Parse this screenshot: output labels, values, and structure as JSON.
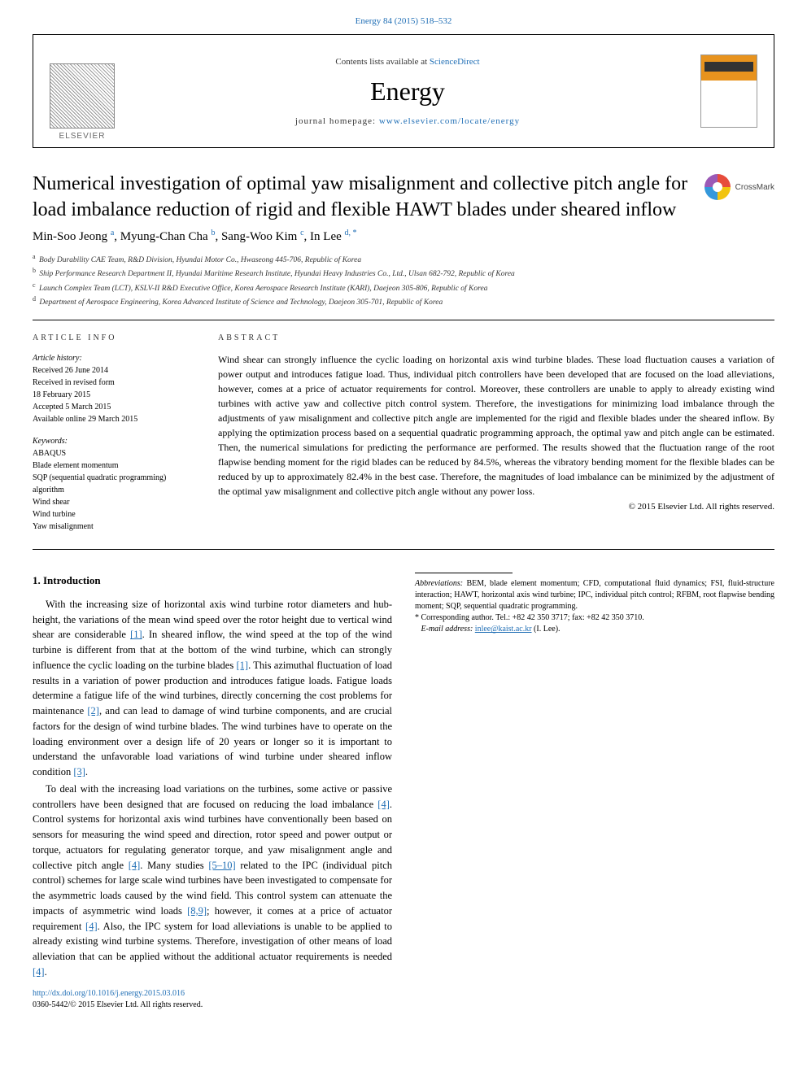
{
  "doi_line": "Energy 84 (2015) 518–532",
  "banner": {
    "elsevier": "ELSEVIER",
    "contents_prefix": "Contents lists available at ",
    "contents_link": "ScienceDirect",
    "journal_name": "Energy",
    "homepage_prefix": "journal homepage: ",
    "homepage_url": "www.elsevier.com/locate/energy"
  },
  "title": "Numerical investigation of optimal yaw misalignment and collective pitch angle for load imbalance reduction of rigid and flexible HAWT blades under sheared inflow",
  "crossmark_label": "CrossMark",
  "authors_html": "Min-Soo Jeong <sup class='aff-link'>a</sup>, Myung-Chan Cha <sup class='aff-link'>b</sup>, Sang-Woo Kim <sup class='aff-link'>c</sup>, In Lee <sup class='aff-link'>d, *</sup>",
  "affiliations": [
    {
      "sup": "a",
      "text": "Body Durability CAE Team, R&D Division, Hyundai Motor Co., Hwaseong 445-706, Republic of Korea"
    },
    {
      "sup": "b",
      "text": "Ship Performance Research Department II, Hyundai Maritime Research Institute, Hyundai Heavy Industries Co., Ltd., Ulsan 682-792, Republic of Korea"
    },
    {
      "sup": "c",
      "text": "Launch Complex Team (LCT), KSLV-II R&D Executive Office, Korea Aerospace Research Institute (KARI), Daejeon 305-806, Republic of Korea"
    },
    {
      "sup": "d",
      "text": "Department of Aerospace Engineering, Korea Advanced Institute of Science and Technology, Daejeon 305-701, Republic of Korea"
    }
  ],
  "article_info": {
    "head": "ARTICLE INFO",
    "history_label": "Article history:",
    "received": "Received 26 June 2014",
    "revised1": "Received in revised form",
    "revised2": "18 February 2015",
    "accepted": "Accepted 5 March 2015",
    "online": "Available online 29 March 2015",
    "keywords_label": "Keywords:",
    "keywords": [
      "ABAQUS",
      "Blade element momentum",
      "SQP (sequential quadratic programming) algorithm",
      "Wind shear",
      "Wind turbine",
      "Yaw misalignment"
    ]
  },
  "abstract": {
    "head": "ABSTRACT",
    "text": "Wind shear can strongly influence the cyclic loading on horizontal axis wind turbine blades. These load fluctuation causes a variation of power output and introduces fatigue load. Thus, individual pitch controllers have been developed that are focused on the load alleviations, however, comes at a price of actuator requirements for control. Moreover, these controllers are unable to apply to already existing wind turbines with active yaw and collective pitch control system. Therefore, the investigations for minimizing load imbalance through the adjustments of yaw misalignment and collective pitch angle are implemented for the rigid and flexible blades under the sheared inflow. By applying the optimization process based on a sequential quadratic programming approach, the optimal yaw and pitch angle can be estimated. Then, the numerical simulations for predicting the performance are performed. The results showed that the fluctuation range of the root flapwise bending moment for the rigid blades can be reduced by 84.5%, whereas the vibratory bending moment for the flexible blades can be reduced by up to approximately 82.4% in the best case. Therefore, the magnitudes of load imbalance can be minimized by the adjustment of the optimal yaw misalignment and collective pitch angle without any power loss.",
    "copyright": "© 2015 Elsevier Ltd. All rights reserved."
  },
  "intro": {
    "heading": "1. Introduction",
    "p1_pre": "With the increasing size of horizontal axis wind turbine rotor diameters and hub-height, the variations of the mean wind speed over the rotor height due to vertical wind shear are considerable ",
    "r1": "[1]",
    "p1_mid1": ". In sheared inflow, the wind speed at the top of the wind turbine is different from that at the bottom of the wind turbine, which can strongly influence the cyclic loading on the turbine blades ",
    "r1b": "[1]",
    "p1_mid2": ". This azimuthal fluctuation of load results in a variation of power production and introduces fatigue loads. Fatigue loads determine a fatigue life of the wind turbines, directly concerning the cost problems for maintenance ",
    "r2": "[2]",
    "p1_mid3": ", and can lead to damage of wind turbine components, and are crucial factors for the design of wind turbine blades. The wind turbines have to operate on the loading environment over a design life of 20 years or longer so it is important to understand the unfavorable load variations of wind turbine under sheared inflow condition ",
    "r3": "[3]",
    "p1_end": ".",
    "p2_pre": "To deal with the increasing load variations on the turbines, some active or passive controllers have been designed that are focused on reducing the load imbalance ",
    "r4": "[4]",
    "p2_mid1": ". Control systems for horizontal axis wind turbines have conventionally been based on sensors for measuring the wind speed and direction, rotor speed and power output or torque, actuators for regulating generator torque, and yaw misalignment angle and collective pitch angle ",
    "r4b": "[4]",
    "p2_mid2": ". Many studies ",
    "r5_10": "[5–10]",
    "p2_mid3": " related to the IPC (individual pitch control) schemes for large scale wind turbines have been investigated to compensate for the asymmetric loads caused by the wind field. This control system can attenuate the impacts of asymmetric wind loads ",
    "r8_9": "[8,9]",
    "p2_mid4": "; however, it comes at a price of actuator requirement ",
    "r4c": "[4]",
    "p2_mid5": ". Also, the IPC system for load alleviations is unable to be applied to already existing wind turbine systems. Therefore, investigation of other means of load alleviation that can be applied without the additional actuator requirements is needed ",
    "r4d": "[4]",
    "p2_end": "."
  },
  "footnotes": {
    "abbrev_label": "Abbreviations:",
    "abbrev_text": " BEM, blade element momentum; CFD, computational fluid dynamics; FSI, fluid-structure interaction; HAWT, horizontal axis wind turbine; IPC, individual pitch control; RFBM, root flapwise bending moment; SQP, sequential quadratic programming.",
    "corr_label": "* Corresponding author. Tel.: +82 42 350 3717; fax: +82 42 350 3710.",
    "email_label": "E-mail address: ",
    "email": "inlee@kaist.ac.kr",
    "email_suffix": " (I. Lee)."
  },
  "footer": {
    "doi_url": "http://dx.doi.org/10.1016/j.energy.2015.03.016",
    "issn": "0360-5442/© 2015 Elsevier Ltd. All rights reserved."
  },
  "colors": {
    "link": "#1f6eb5",
    "text": "#000000",
    "cover_top": "#e8931e"
  }
}
